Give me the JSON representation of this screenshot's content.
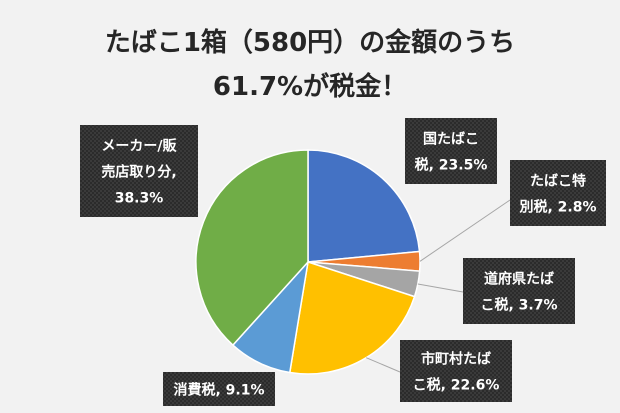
{
  "chart_data": {
    "type": "pie",
    "title_line1": "たばこ1箱（580円）の金額のうち",
    "title_line2": "61.7%が税金！",
    "slices": [
      {
        "label_lines": [
          "国たばこ",
          "税, 23.5%"
        ],
        "value": 23.5,
        "color": "#4472c4"
      },
      {
        "label_lines": [
          "たばこ特",
          "別税, 2.8%"
        ],
        "value": 2.8,
        "color": "#ed7d31"
      },
      {
        "label_lines": [
          "道府県たば",
          "こ税, 3.7%"
        ],
        "value": 3.7,
        "color": "#a5a5a5"
      },
      {
        "label_lines": [
          "市町村たば",
          "こ税, 22.6%"
        ],
        "value": 22.6,
        "color": "#ffc000"
      },
      {
        "label_lines": [
          "消費税, 9.1%"
        ],
        "value": 9.1,
        "color": "#5b9bd5"
      },
      {
        "label_lines": [
          "メーカー/販",
          "売店取り分,",
          "38.3%"
        ],
        "value": 38.3,
        "color": "#70ad47"
      }
    ]
  }
}
